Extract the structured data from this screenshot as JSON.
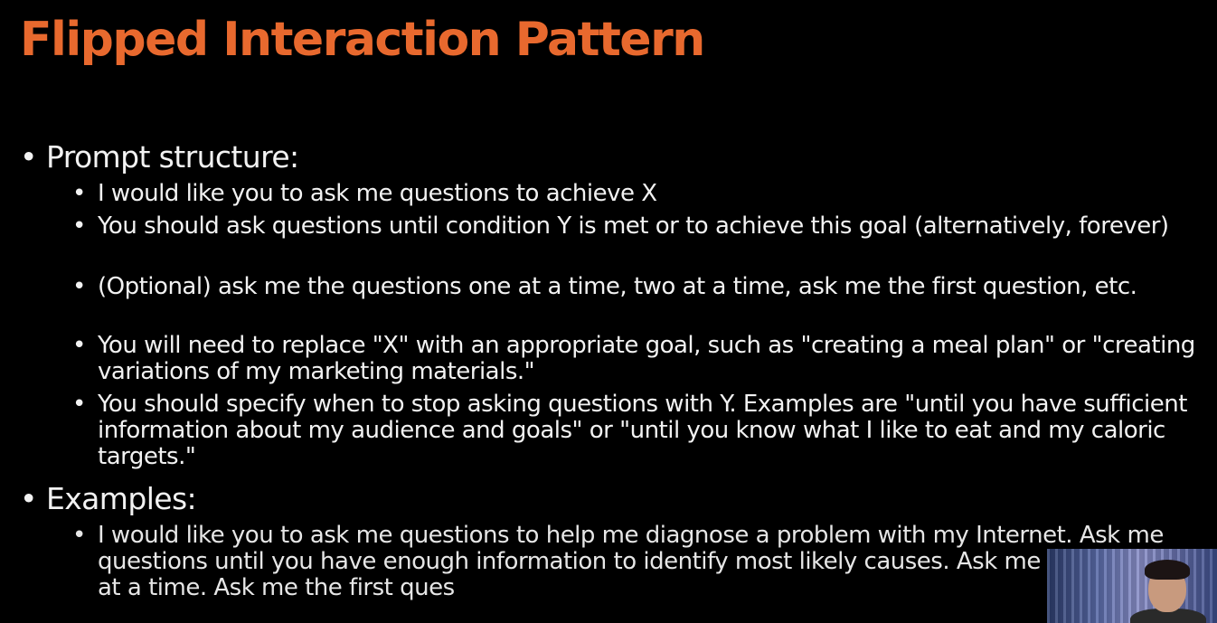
{
  "slide": {
    "title": "Flipped Interaction Pattern",
    "sections": [
      {
        "label": "Prompt structure:",
        "items": [
          "I would like you to ask me questions to achieve X",
          "You should ask questions until condition Y is met or to achieve this goal (alternatively, forever)",
          "(Optional) ask me the questions one at a time, two at a time, ask me the first question, etc.",
          "You will need to replace \"X\" with an appropriate goal, such as \"creating a meal plan\" or \"creating variations of my marketing materials.\"",
          "You should specify when to stop asking questions with Y. Examples are \"until you have sufficient information about my audience and goals\" or \"until you know what I like to eat and my caloric targets.\""
        ]
      },
      {
        "label": "Examples:",
        "items": [
          "I would like you to ask me questions to help me diagnose a problem with my Internet. Ask me questions until you have enough information to identify most likely causes. Ask me one question at a time. Ask me the first ques"
        ]
      }
    ]
  },
  "bullet_glyph": "•",
  "colors": {
    "background": "#000000",
    "title": "#e8692e",
    "text": "#f2f2f2"
  },
  "webcam": {
    "icon": "presenter-webcam-thumbnail"
  }
}
